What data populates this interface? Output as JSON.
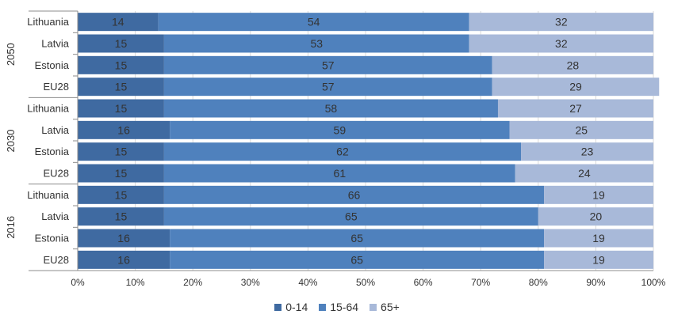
{
  "chart_data": {
    "type": "bar",
    "orientation": "horizontal",
    "stacked": true,
    "percent": true,
    "title": "",
    "xlabel": "",
    "ylabel": "",
    "xlim": [
      0,
      100
    ],
    "x_ticks": [
      "0%",
      "10%",
      "20%",
      "30%",
      "40%",
      "50%",
      "60%",
      "70%",
      "80%",
      "90%",
      "100%"
    ],
    "grid": true,
    "legend_position": "bottom",
    "groups": [
      {
        "name": "2050",
        "categories": [
          "Lithuania",
          "Latvia",
          "Estonia",
          "EU28"
        ]
      },
      {
        "name": "2030",
        "categories": [
          "Lithuania",
          "Latvia",
          "Estonia",
          "EU28"
        ]
      },
      {
        "name": "2016",
        "categories": [
          "Lithuania",
          "Latvia",
          "Estonia",
          "EU28"
        ]
      }
    ],
    "series": [
      {
        "name": "0-14",
        "color": "#3f6aa1",
        "values": [
          14,
          15,
          15,
          15,
          15,
          16,
          15,
          15,
          15,
          15,
          16,
          16
        ]
      },
      {
        "name": "15-64",
        "color": "#4f81bd",
        "values": [
          54,
          53,
          57,
          57,
          58,
          59,
          62,
          61,
          66,
          65,
          65,
          65
        ]
      },
      {
        "name": "65+",
        "color": "#a8b9d9",
        "values": [
          32,
          32,
          28,
          29,
          27,
          25,
          23,
          24,
          19,
          20,
          19,
          19
        ]
      }
    ]
  }
}
